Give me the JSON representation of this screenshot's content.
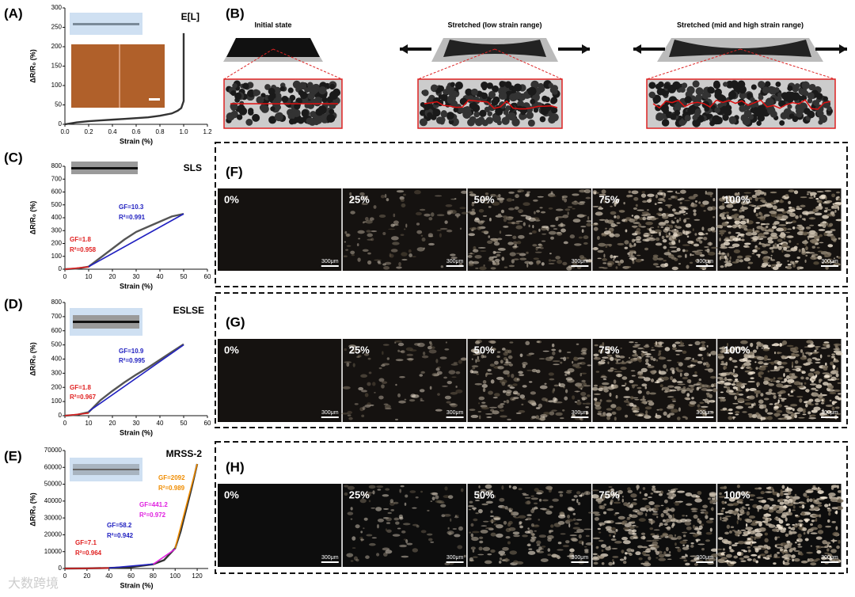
{
  "chart_data": [
    {
      "type": "line",
      "panel": "(A)",
      "label": "E[L]",
      "xlabel": "Strain (%)",
      "ylabel": "ΔR/R₀ (%)",
      "xlim": [
        0,
        1.2
      ],
      "xticks": [
        {
          "value": 0,
          "label": "0.0"
        },
        0.2,
        0.4,
        0.6,
        0.8,
        {
          "value": 1,
          "label": "1.0"
        },
        1.2
      ],
      "ylim": [
        0,
        300
      ],
      "yticks": [
        0,
        50,
        100,
        150,
        200,
        250,
        300
      ],
      "series": [
        {
          "color": "#333333",
          "x": [
            0,
            0.1,
            0.2,
            0.3,
            0.4,
            0.5,
            0.6,
            0.7,
            0.8,
            0.9,
            0.95,
            0.98,
            1.0,
            1.0
          ],
          "values": [
            0,
            5,
            8,
            10,
            12,
            14,
            16,
            18,
            22,
            28,
            35,
            42,
            60,
            235
          ]
        }
      ],
      "annotations": []
    },
    {
      "type": "line",
      "panel": "(C)",
      "label": "SLS",
      "xlabel": "Strain (%)",
      "ylabel": "ΔR/R₀ (%)",
      "xlim": [
        0,
        60
      ],
      "xticks": [
        0,
        10,
        20,
        30,
        40,
        50,
        60
      ],
      "ylim": [
        0,
        800
      ],
      "yticks": [
        0,
        100,
        200,
        300,
        400,
        500,
        600,
        700,
        800
      ],
      "series": [
        {
          "color": "#555555",
          "x": [
            0,
            5,
            10,
            15,
            20,
            25,
            30,
            35,
            40,
            45,
            50
          ],
          "values": [
            0,
            5,
            20,
            90,
            160,
            230,
            290,
            330,
            370,
            410,
            430
          ]
        },
        {
          "color": "#e02020",
          "x": [
            0,
            10
          ],
          "values": [
            0,
            18
          ]
        },
        {
          "color": "#2020c0",
          "x": [
            10,
            50
          ],
          "values": [
            20,
            430
          ]
        }
      ],
      "annotations": [
        {
          "text": "GF=1.8",
          "color": "#e02020"
        },
        {
          "text": "R²=0.958",
          "color": "#e02020"
        },
        {
          "text": "GF=10.3",
          "color": "#2020c0"
        },
        {
          "text": "R²=0.991",
          "color": "#2020c0"
        }
      ]
    },
    {
      "type": "line",
      "panel": "(D)",
      "label": "ESLSE",
      "xlabel": "Strain (%)",
      "ylabel": "ΔR/R₀ (%)",
      "xlim": [
        0,
        60
      ],
      "xticks": [
        0,
        10,
        20,
        30,
        40,
        50,
        60
      ],
      "ylim": [
        0,
        800
      ],
      "yticks": [
        0,
        100,
        200,
        300,
        400,
        500,
        600,
        700,
        800
      ],
      "series": [
        {
          "color": "#555555",
          "x": [
            0,
            5,
            10,
            15,
            20,
            25,
            30,
            35,
            40,
            45,
            50
          ],
          "values": [
            0,
            6,
            25,
            110,
            175,
            235,
            290,
            340,
            395,
            450,
            505
          ]
        },
        {
          "color": "#e02020",
          "x": [
            0,
            10
          ],
          "values": [
            0,
            18
          ]
        },
        {
          "color": "#2020c0",
          "x": [
            10,
            50
          ],
          "values": [
            30,
            500
          ]
        }
      ],
      "annotations": [
        {
          "text": "GF=1.8",
          "color": "#e02020"
        },
        {
          "text": "R²=0.967",
          "color": "#e02020"
        },
        {
          "text": "GF=10.9",
          "color": "#2020c0"
        },
        {
          "text": "R²=0.995",
          "color": "#2020c0"
        }
      ]
    },
    {
      "type": "line",
      "panel": "(E)",
      "label": "MRSS-2",
      "xlabel": "Strain (%)",
      "ylabel": "ΔR/R₀ (%)",
      "xlim": [
        0,
        130
      ],
      "xticks": [
        0,
        20,
        40,
        60,
        80,
        100,
        120
      ],
      "ylim": [
        0,
        70000
      ],
      "yticks": [
        0,
        10000,
        20000,
        30000,
        40000,
        50000,
        60000,
        70000
      ],
      "series": [
        {
          "color": "#333333",
          "x": [
            0,
            20,
            40,
            60,
            80,
            90,
            100,
            105,
            110,
            115,
            120
          ],
          "values": [
            0,
            100,
            300,
            800,
            2500,
            5000,
            12000,
            22000,
            35000,
            48000,
            62000
          ]
        },
        {
          "color": "#e02020",
          "x": [
            0,
            40
          ],
          "values": [
            0,
            280
          ]
        },
        {
          "color": "#2020c0",
          "x": [
            40,
            80
          ],
          "values": [
            300,
            2600
          ]
        },
        {
          "color": "#e020e0",
          "x": [
            80,
            100
          ],
          "values": [
            2500,
            11500
          ]
        },
        {
          "color": "#f08c00",
          "x": [
            100,
            120
          ],
          "values": [
            12000,
            62000
          ]
        }
      ],
      "annotations": [
        {
          "text": "GF=7.1",
          "color": "#e02020"
        },
        {
          "text": "R²=0.964",
          "color": "#e02020"
        },
        {
          "text": "GF=58.2",
          "color": "#2020c0"
        },
        {
          "text": "R²=0.942",
          "color": "#2020c0"
        },
        {
          "text": "GF=441.2",
          "color": "#e020e0"
        },
        {
          "text": "R²=0.972",
          "color": "#e020e0"
        },
        {
          "text": "GF=2092",
          "color": "#f08c00"
        },
        {
          "text": "R²=0.989",
          "color": "#f08c00"
        }
      ]
    }
  ],
  "diagram": {
    "panel": "(B)",
    "states": [
      "Initial state",
      "Stretched (low strain range)",
      "Stretched (mid and high strain range)"
    ]
  },
  "micrographs": [
    {
      "panel": "(F)",
      "frames": [
        "0%",
        "25%",
        "50%",
        "75%",
        "100%"
      ],
      "scale": "300μm"
    },
    {
      "panel": "(G)",
      "frames": [
        "0%",
        "25%",
        "50%",
        "75%",
        "100%"
      ],
      "scale": "300μm"
    },
    {
      "panel": "(H)",
      "frames": [
        "0%",
        "25%",
        "50%",
        "75%",
        "100%"
      ],
      "scale": "300μm"
    }
  ],
  "watermark": "大数跨境"
}
